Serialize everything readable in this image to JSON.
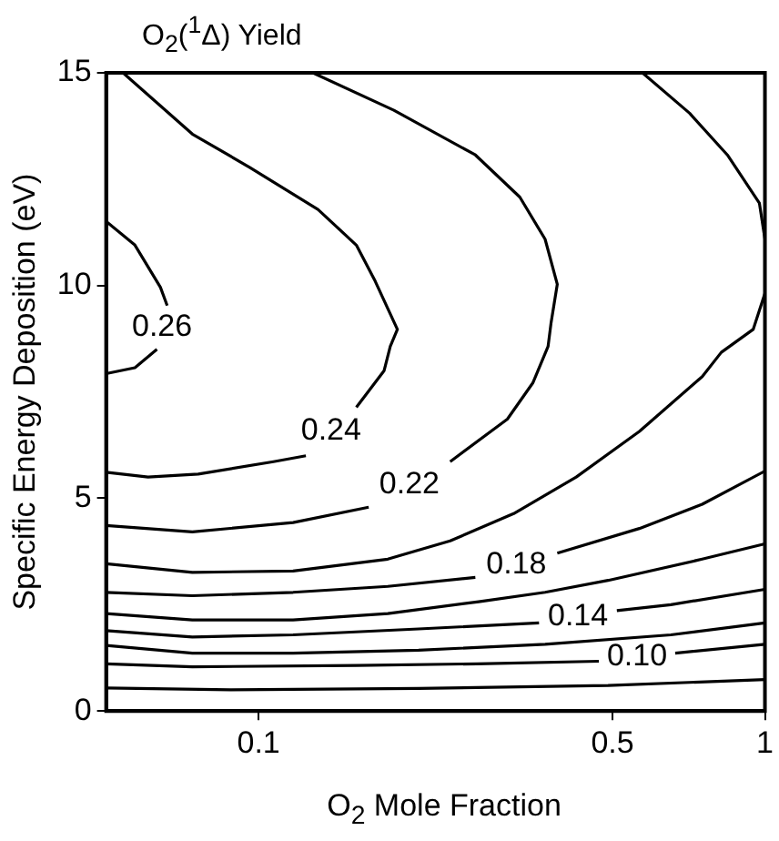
{
  "chart_data": {
    "type": "line",
    "title": "O$_{2}$($^{1}$Δ) Yield",
    "xlabel": "O$_{2}$ Mole Fraction",
    "ylabel": "Specific Energy Deposition (eV)",
    "log": "x",
    "xlim": [
      0.05,
      1
    ],
    "xticks": [
      0.1,
      0.5,
      1
    ],
    "ylim": [
      0,
      15
    ],
    "yticks": [
      0,
      5,
      10,
      15
    ],
    "grid": false,
    "marker": "none",
    "line_style": "solid",
    "series": [
      {
        "name": "0.26",
        "color": "#000000",
        "x": [
          0.05,
          0.057,
          0.064,
          0.066,
          0.065,
          0.063,
          0.057,
          0.05
        ],
        "values": [
          11.51,
          10.95,
          9.96,
          9.53,
          null,
          8.5,
          8.07,
          7.93
        ]
      },
      {
        "name": "0.24",
        "color": "#000000",
        "x": [
          0.05,
          0.0605,
          0.076,
          0.107,
          0.124,
          0.14,
          0.156,
          0.177,
          0.182,
          0.188,
          0.17,
          0.156,
          0.131,
          0.096,
          0.074,
          0.054
        ],
        "values": [
          5.61,
          5.5,
          5.57,
          5.86,
          6.0,
          null,
          7.14,
          8.0,
          8.57,
          8.97,
          10.1,
          10.95,
          11.79,
          12.78,
          13.56,
          15
        ]
      },
      {
        "name": "0.22",
        "color": "#000000",
        "x": [
          0.05,
          0.074,
          0.117,
          0.165,
          0.2,
          0.239,
          0.31,
          0.348,
          0.373,
          0.378,
          0.389,
          0.368,
          0.328,
          0.268,
          0.185,
          0.128
        ],
        "values": [
          4.36,
          4.21,
          4.43,
          4.79,
          null,
          5.86,
          6.86,
          7.71,
          8.57,
          9.11,
          10.03,
          11.09,
          12.08,
          13.07,
          14.12,
          15
        ]
      },
      {
        "color": "#000000",
        "x": [
          0.05,
          0.074,
          0.117,
          0.18,
          0.239,
          0.319,
          0.424,
          0.565,
          0.752,
          0.82,
          0.948,
          1.0,
          1.0,
          0.975,
          0.843,
          0.71,
          0.573
        ],
        "values": [
          3.46,
          3.26,
          3.29,
          3.57,
          4.0,
          4.64,
          5.5,
          6.57,
          7.86,
          8.43,
          8.97,
          9.82,
          11.09,
          11.94,
          13.07,
          14.05,
          15
        ]
      },
      {
        "name": "0.18",
        "color": "#000000",
        "x": [
          0.05,
          0.074,
          0.117,
          0.18,
          0.268,
          0.33,
          0.389,
          0.565,
          0.752,
          1.0
        ],
        "values": [
          2.79,
          2.71,
          2.79,
          2.93,
          3.14,
          null,
          3.71,
          4.29,
          4.86,
          5.64
        ]
      },
      {
        "color": "#000000",
        "x": [
          0.05,
          0.074,
          0.117,
          0.18,
          0.272,
          0.368,
          0.49,
          0.752,
          1.0
        ],
        "values": [
          2.29,
          2.14,
          2.14,
          2.29,
          2.57,
          2.79,
          3.07,
          3.57,
          3.93
        ]
      },
      {
        "name": "0.14",
        "color": "#000000",
        "x": [
          0.05,
          0.074,
          0.117,
          0.207,
          0.358,
          0.43,
          0.51,
          0.652,
          1.0
        ],
        "values": [
          1.89,
          1.74,
          1.79,
          1.93,
          2.07,
          null,
          2.36,
          2.5,
          2.86
        ]
      },
      {
        "color": "#000000",
        "x": [
          0.05,
          0.074,
          0.117,
          0.207,
          0.368,
          0.652,
          1.0
        ],
        "values": [
          1.54,
          1.36,
          1.36,
          1.43,
          1.57,
          1.79,
          2.07
        ]
      },
      {
        "name": "0.10",
        "color": "#000000",
        "x": [
          0.05,
          0.074,
          0.156,
          0.27,
          0.47,
          0.56,
          0.665,
          1.0
        ],
        "values": [
          1.11,
          1.04,
          1.07,
          1.11,
          1.17,
          null,
          1.36,
          1.57
        ]
      },
      {
        "color": "#000000",
        "x": [
          0.05,
          0.088,
          0.207,
          0.49,
          1.0
        ],
        "values": [
          0.54,
          0.5,
          0.53,
          0.6,
          0.74
        ]
      }
    ]
  }
}
